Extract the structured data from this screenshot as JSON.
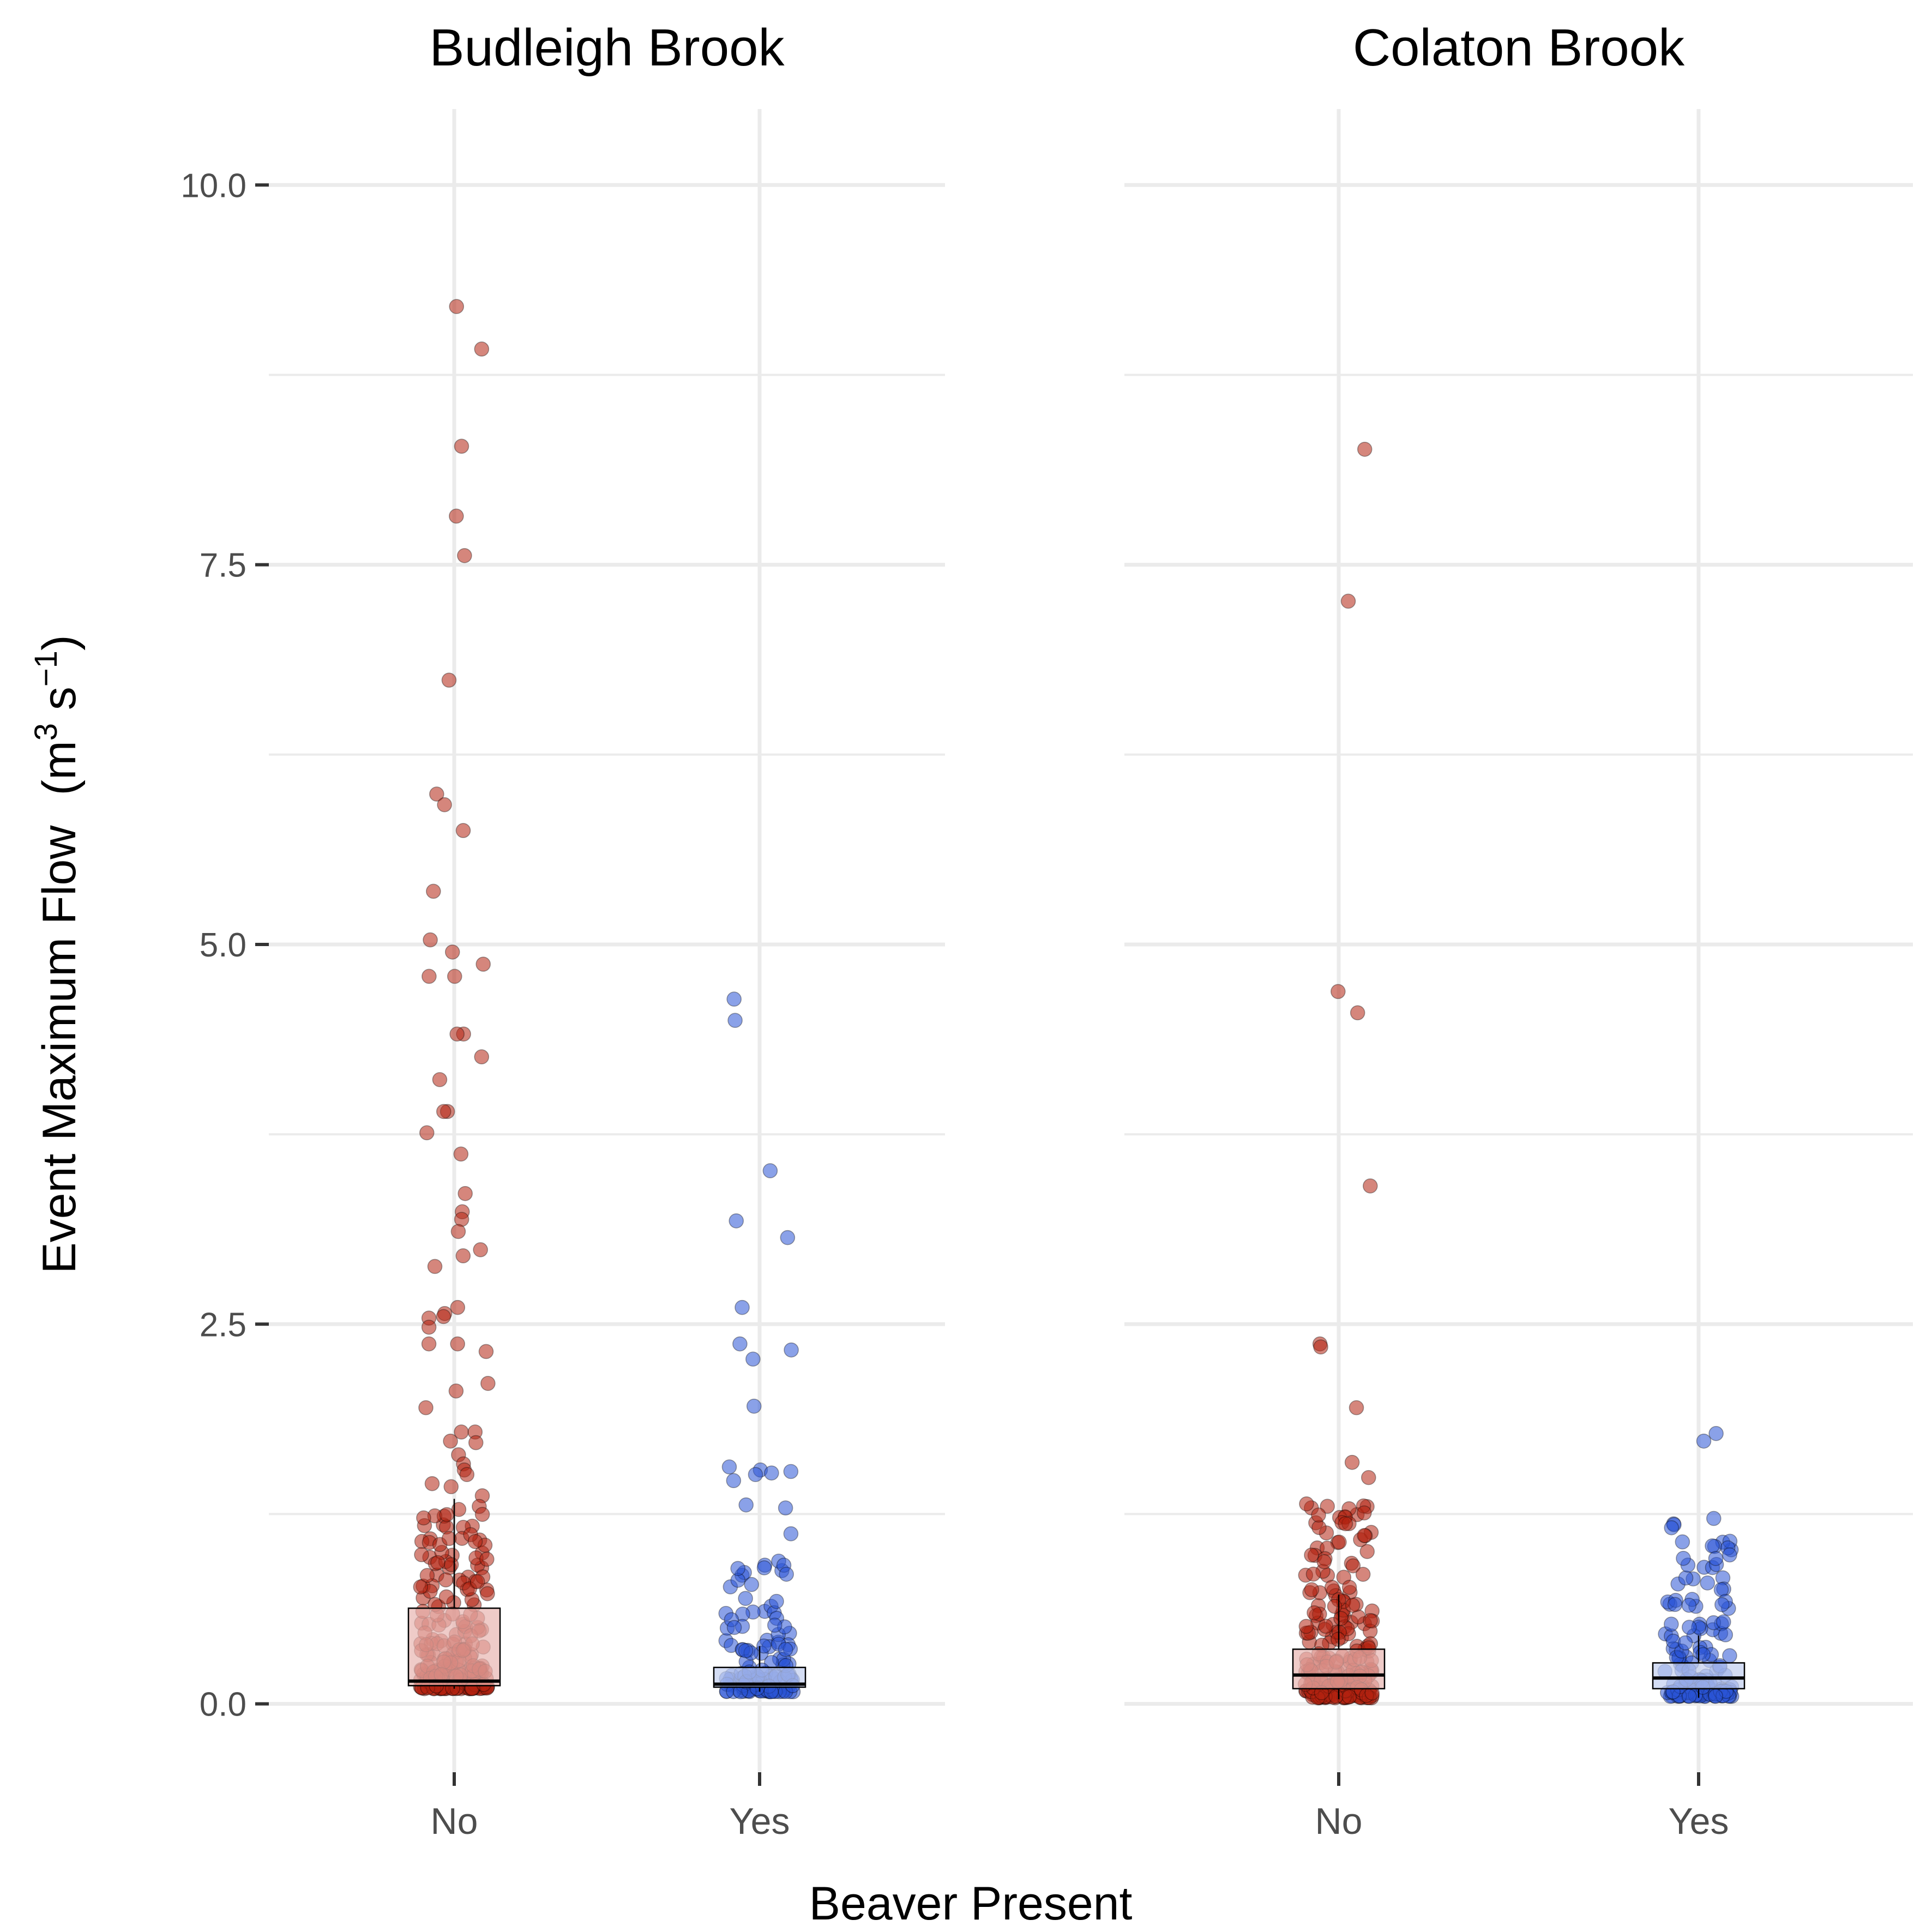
{
  "chart_data": {
    "type": "scatter",
    "subtype": "jittered points with boxplots (faceted)",
    "xlabel": "Beaver Present",
    "ylabel": {
      "text": "Event Maximum Flow",
      "units_open": "(m",
      "units_sup1": "3",
      "units_mid": " s",
      "units_sup2": "−1",
      "units_close": ")"
    },
    "ylim": [
      -0.45,
      10.5
    ],
    "y_ticks": [
      0,
      2.5,
      5,
      7.5,
      10
    ],
    "y_tick_labels": [
      "0.0",
      "2.5",
      "5.0",
      "7.5",
      "10.0"
    ],
    "y_minor_ticks": [
      1.25,
      3.75,
      6.25,
      8.75
    ],
    "categories": [
      "No",
      "Yes"
    ],
    "grid": true,
    "legend": "none",
    "colors": {
      "No": "#b22211",
      "Yes": "#2a54d6",
      "No_box": "#e8b5b0",
      "Yes_box": "#c2cef0"
    },
    "panels": [
      {
        "title": "Budleigh Brook",
        "outlier_points": {
          "No": [
            9.2,
            8.92,
            8.28,
            7.82,
            7.56,
            6.74,
            5.99,
            5.92,
            5.75,
            5.35,
            5.03,
            4.95,
            4.87,
            4.79,
            4.79,
            4.41,
            4.41,
            4.26,
            4.11,
            3.9,
            3.9,
            3.76,
            3.62,
            3.36,
            3.24,
            3.19,
            3.11,
            2.99,
            2.95,
            2.88,
            2.61,
            2.57,
            2.55,
            2.54,
            2.48,
            2.37,
            2.37,
            2.32,
            2.11,
            2.06,
            1.95,
            1.79,
            1.79,
            1.73,
            1.72,
            1.64,
            1.58,
            1.54,
            1.51,
            1.45,
            1.43,
            1.37,
            1.3,
            1.28
          ],
          "Yes": [
            4.64,
            4.5,
            3.51,
            3.18,
            3.07,
            2.61,
            2.37,
            2.33,
            2.27,
            1.96,
            1.56,
            1.54,
            1.53,
            1.52,
            1.51,
            1.47,
            1.31,
            1.29,
            1.12
          ]
        },
        "bulk_points": {
          "No": {
            "count": 220,
            "min": 0.1,
            "max": 1.25
          },
          "Yes": {
            "count": 130,
            "min": 0.08,
            "max": 0.98
          }
        },
        "boxes": {
          "No": {
            "q1": 0.12,
            "median": 0.15,
            "q3": 0.63,
            "whisker_low": 0.1,
            "whisker_high": 1.35
          },
          "Yes": {
            "q1": 0.11,
            "median": 0.13,
            "q3": 0.24,
            "whisker_low": 0.08,
            "whisker_high": 0.38
          }
        }
      },
      {
        "title": "Colaton Brook",
        "outlier_points": {
          "No": [
            8.26,
            7.26,
            4.69,
            4.55,
            3.41,
            2.37,
            2.35,
            1.95,
            1.59,
            1.49
          ],
          "Yes": [
            1.78,
            1.73
          ]
        },
        "bulk_points": {
          "No": {
            "count": 230,
            "min": 0.04,
            "max": 1.33
          },
          "Yes": {
            "count": 150,
            "min": 0.05,
            "max": 1.23
          }
        },
        "boxes": {
          "No": {
            "q1": 0.1,
            "median": 0.19,
            "q3": 0.36,
            "whisker_low": 0.03,
            "whisker_high": 0.72
          },
          "Yes": {
            "q1": 0.1,
            "median": 0.17,
            "q3": 0.27,
            "whisker_low": 0.04,
            "whisker_high": 0.45
          }
        }
      }
    ]
  }
}
